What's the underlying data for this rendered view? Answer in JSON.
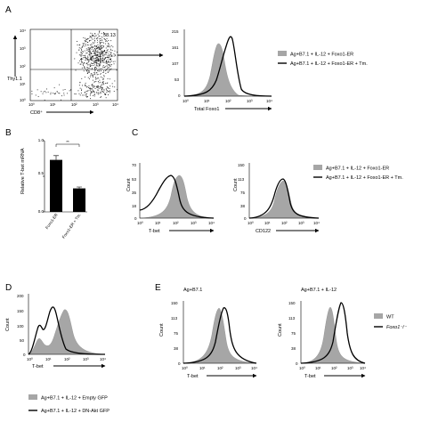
{
  "panel_labels": {
    "A": "A",
    "B": "B",
    "C": "C",
    "D": "D",
    "E": "E"
  },
  "panel_a": {
    "dot_plot": {
      "y_label": "Thy1.1",
      "x_label": "CD8⁺",
      "gate_value": "58.13",
      "y_ticks": [
        "10⁴",
        "10³",
        "10²",
        "10¹",
        "10⁰"
      ],
      "x_ticks": [
        "10⁰",
        "10¹",
        "10²",
        "10³",
        "10⁴"
      ]
    },
    "histogram": {
      "x_label": "Total Foxo1",
      "y_ticks": [
        "215",
        "161",
        "107",
        "53",
        "0"
      ],
      "x_ticks": [
        "10⁰",
        "10¹",
        "10²",
        "10³",
        "10⁴"
      ],
      "legend": [
        "Ag+B7.1 + IL-12 + Foxo1-ER",
        "Ag+B7.1 + IL-12 + Foxo1-ER + Tm."
      ]
    }
  },
  "panel_b": {
    "y_label": "Relative T-bet mRNA",
    "significance": "**",
    "y_ticks": [
      "1.0",
      "0.5",
      "0.0"
    ]
  },
  "panel_c": {
    "legend": [
      "Ag+B7.1 + IL-12 + Foxo1-ER",
      "Ag+B7.1 + IL-12 + Foxo1-ER + Tm."
    ],
    "left": {
      "x_label": "T-bet",
      "y_label": "Count",
      "y_ticks": [
        "70",
        "53",
        "35",
        "18",
        "0"
      ],
      "x_ticks": [
        "10⁰",
        "10¹",
        "10²",
        "10³",
        "10⁴"
      ]
    },
    "right": {
      "x_label": "CD122",
      "y_label": "Count",
      "y_ticks": [
        "150",
        "113",
        "75",
        "38",
        "0"
      ],
      "x_ticks": [
        "10⁰",
        "10¹",
        "10²",
        "10³",
        "10⁴"
      ]
    }
  },
  "panel_d": {
    "x_label": "T-bet",
    "y_label": "Count",
    "y_ticks": [
      "200",
      "150",
      "100",
      "50",
      "0"
    ],
    "x_ticks": [
      "10⁰",
      "10¹",
      "10²",
      "10³",
      "10⁴"
    ],
    "legend": [
      "Ag+B7.1 + IL-12 + Empty GFP",
      "Ag+B7.1 + IL-12 + DN-Akt GFP"
    ]
  },
  "panel_e": {
    "left": {
      "title": "Ag+B7.1",
      "x_label": "T-bet",
      "y_label": "Count",
      "y_ticks": [
        "150",
        "113",
        "75",
        "38",
        "0"
      ],
      "x_ticks": [
        "10⁰",
        "10¹",
        "10²",
        "10³",
        "10⁴"
      ]
    },
    "right": {
      "title": "Ag+B7.1 + IL-12",
      "x_label": "T-bet",
      "y_label": "Count",
      "y_ticks": [
        "150",
        "113",
        "75",
        "38",
        "0"
      ],
      "x_ticks": [
        "10⁰",
        "10¹",
        "10²",
        "10³",
        "10⁴"
      ]
    },
    "legend": [
      "WT",
      "Foxo1⁻/⁻"
    ]
  },
  "chart_data": [
    {
      "type": "bar",
      "panel": "B",
      "categories": [
        "Foxo1-ER",
        "Foxo1-ER + Tm."
      ],
      "values": [
        0.73,
        0.33
      ],
      "errors": [
        0.06,
        0.02
      ],
      "ylabel": "Relative T-bet mRNA",
      "ylim": [
        0,
        1.0
      ],
      "bar_color": "#000000"
    }
  ]
}
